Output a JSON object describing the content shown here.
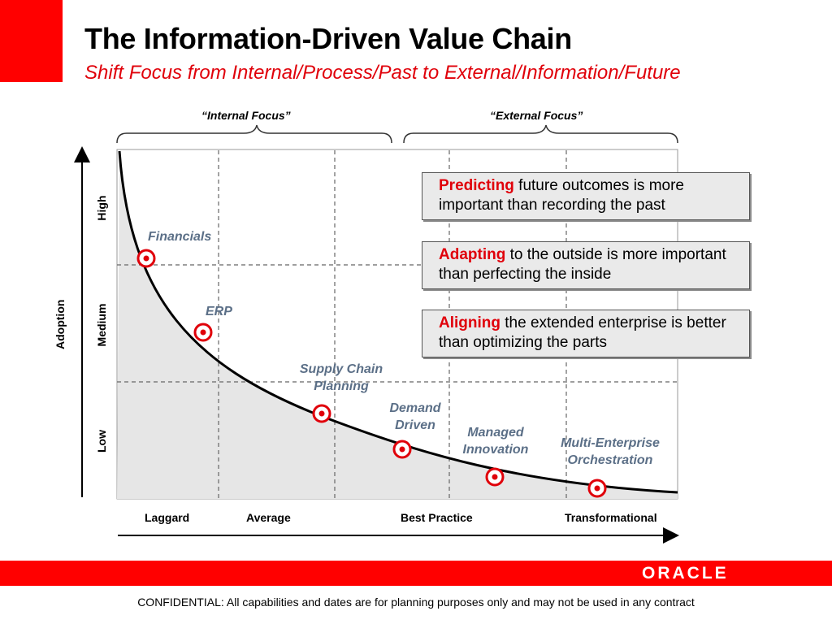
{
  "header": {
    "title": "The Information-Driven Value Chain",
    "subtitle": "Shift Focus from Internal/Process/Past to External/Information/Future"
  },
  "focus": {
    "internal": "“Internal Focus”",
    "external": "“External Focus”"
  },
  "axes": {
    "y_title": "Adoption",
    "y_levels": [
      "High",
      "Medium",
      "Low"
    ],
    "x_levels": [
      "Laggard",
      "Average",
      "Best Practice",
      "Transformational"
    ]
  },
  "points": [
    {
      "label": "Financials"
    },
    {
      "label": "ERP"
    },
    {
      "label_lines": [
        "Supply Chain",
        "Planning"
      ]
    },
    {
      "label_lines": [
        "Demand",
        "Driven"
      ]
    },
    {
      "label_lines": [
        "Managed",
        "Innovation"
      ]
    },
    {
      "label_lines": [
        "Multi-Enterprise",
        "Orchestration"
      ]
    }
  ],
  "callouts": [
    {
      "keyword": "Predicting",
      "rest": " future outcomes is more important than recording the past"
    },
    {
      "keyword": "Adapting",
      "rest": " to the outside is more important than perfecting the inside"
    },
    {
      "keyword": "Aligning",
      "rest": " the extended enterprise is better than optimizing the parts"
    }
  ],
  "brand": {
    "logo": "ORACLE",
    "accent": "#ff0000",
    "point_color": "#e0000a",
    "label_color": "#5b6f87"
  },
  "footer": {
    "confidential": "CONFIDENTIAL:  All capabilities and dates are for planning purposes only and may not be used in any contract"
  }
}
